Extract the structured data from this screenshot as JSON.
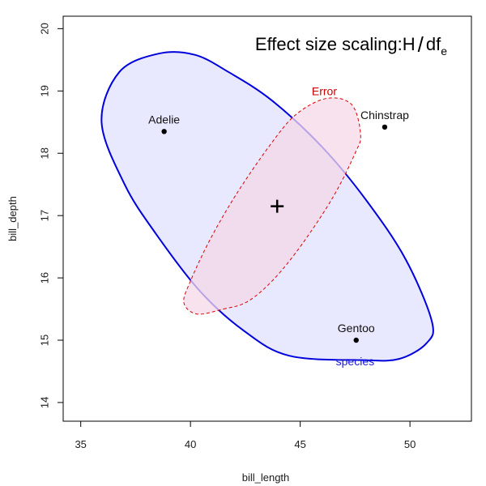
{
  "chart_data": {
    "type": "scatter",
    "title": {
      "prefix": "Effect size scaling:",
      "main": "H",
      "slash": "/",
      "df": "df",
      "subscript": "e"
    },
    "xlabel": "bill_length",
    "ylabel": "bill_depth",
    "xlim": [
      34.2,
      52.8
    ],
    "ylim": [
      13.7,
      20.2
    ],
    "xticks": [
      "35",
      "40",
      "45",
      "50"
    ],
    "yticks": [
      "14",
      "15",
      "16",
      "17",
      "18",
      "19",
      "20"
    ],
    "grid": false,
    "points": [
      {
        "label": "Adelie",
        "x": 38.8,
        "y": 18.35
      },
      {
        "label": "Chinstrap",
        "x": 48.85,
        "y": 18.42
      },
      {
        "label": "Gentoo",
        "x": 47.55,
        "y": 15.0
      }
    ],
    "center": {
      "x": 43.95,
      "y": 17.15
    },
    "ellipses": [
      {
        "name": "species",
        "line_color": "#0000dd",
        "fill_color": "#e0e0ff",
        "line_style": "solid",
        "label_color": "#1a1adb",
        "label_at": {
          "x": 47.5,
          "y": 14.6
        },
        "points": [
          [
            44.5,
            14.75
          ],
          [
            42.4,
            15.16
          ],
          [
            40.4,
            15.8
          ],
          [
            38.4,
            16.72
          ],
          [
            37.0,
            17.5
          ],
          [
            35.95,
            18.5
          ],
          [
            36.75,
            19.3
          ],
          [
            38.55,
            19.6
          ],
          [
            40.2,
            19.58
          ],
          [
            41.75,
            19.3
          ],
          [
            43.7,
            18.85
          ],
          [
            46.0,
            18.1
          ],
          [
            48.0,
            17.25
          ],
          [
            49.8,
            16.3
          ],
          [
            51.0,
            15.3
          ],
          [
            50.75,
            14.95
          ],
          [
            49.5,
            14.7
          ],
          [
            47.9,
            14.68
          ],
          [
            44.5,
            14.75
          ]
        ]
      },
      {
        "name": "Error",
        "line_color": "#dd0000",
        "fill_color": "#f4d8e8",
        "line_style": "dashed",
        "label_color": "#cc0000",
        "label_at": {
          "x": 46.1,
          "y": 18.93
        },
        "points": [
          [
            41.5,
            15.5
          ],
          [
            42.6,
            15.62
          ],
          [
            43.8,
            15.98
          ],
          [
            45.1,
            16.55
          ],
          [
            46.5,
            17.3
          ],
          [
            47.5,
            18.0
          ],
          [
            47.75,
            18.3
          ],
          [
            47.35,
            18.78
          ],
          [
            46.2,
            18.88
          ],
          [
            44.8,
            18.62
          ],
          [
            43.6,
            18.12
          ],
          [
            42.1,
            17.35
          ],
          [
            40.9,
            16.62
          ],
          [
            40.0,
            15.95
          ],
          [
            39.7,
            15.6
          ],
          [
            40.3,
            15.42
          ],
          [
            41.5,
            15.5
          ]
        ]
      }
    ]
  }
}
